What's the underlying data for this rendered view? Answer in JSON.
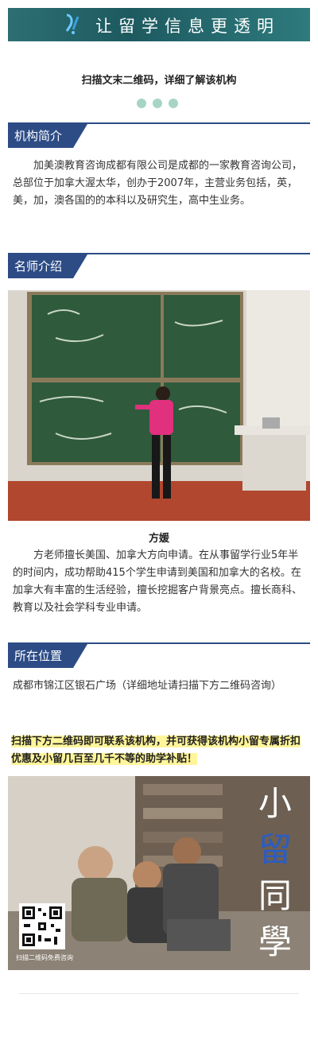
{
  "banner": {
    "slogan": "让留学信息更透明"
  },
  "intro": {
    "scan_text": "扫描文末二维码，详细了解该机构"
  },
  "about": {
    "title": "机构简介",
    "body": "加美澳教育咨询成都有限公司是成都的一家教育咨询公司，总部位于加拿大渥太华，创办于2007年，主营业务包括，英，美，加，澳各国的的本科以及研究生，高中生业务。"
  },
  "teacher": {
    "title": "名师介绍",
    "name": "方媛",
    "body": "方老师擅长美国、加拿大方向申请。在从事留学行业5年半的时间内，成功帮助415个学生申请到美国和加拿大的名校。在加拿大有丰富的生活经验，擅长挖掘客户背景亮点。擅长商科、教育以及社会学科专业申请。"
  },
  "location": {
    "title": "所在位置",
    "address": "成都市锦江区银石广场（详细地址请扫描下方二维码咨询）"
  },
  "promo": {
    "text": "扫描下方二维码即可联系该机构，并可获得该机构小留专属折扣优惠及小留几百至几千不等的助学补贴！",
    "qr_caption": "扫描二维码免费咨询",
    "brand_chars": [
      "小",
      "留",
      "同",
      "學"
    ]
  }
}
